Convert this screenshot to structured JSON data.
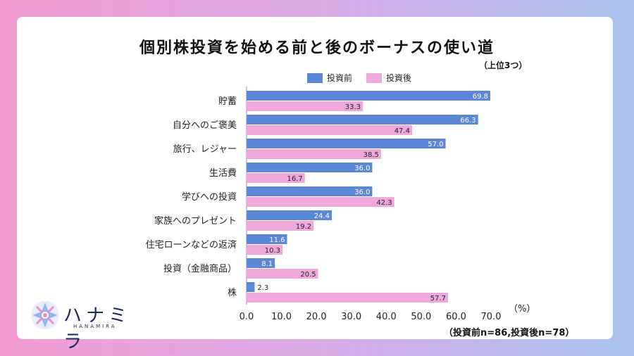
{
  "title": "個別株投資を始める前と後のボーナスの使い道",
  "subtitle": "（上位3つ）",
  "legend": {
    "before": "投資前",
    "after": "投資後"
  },
  "unit": "（%）",
  "note": "（投資前n=86,投資後n=78）",
  "logo": {
    "name": "ハナミラ",
    "sub": "HANAMIRA"
  },
  "colors": {
    "before": "#5b87d6",
    "after": "#eea8dc",
    "axis": "#999999"
  },
  "chart_data": {
    "type": "bar",
    "orientation": "horizontal",
    "categories": [
      "貯蓄",
      "自分へのご褒美",
      "旅行、レジャー",
      "生活費",
      "学びへの投資",
      "家族へのプレゼント",
      "住宅ローンなどの返済",
      "投資（金融商品）",
      "株"
    ],
    "series": [
      {
        "name": "投資前",
        "values": [
          69.8,
          66.3,
          57.0,
          36.0,
          36.0,
          24.4,
          11.6,
          8.1,
          2.3
        ]
      },
      {
        "name": "投資後",
        "values": [
          33.3,
          47.4,
          38.5,
          16.7,
          42.3,
          19.2,
          10.3,
          20.5,
          57.7
        ]
      }
    ],
    "xlim": [
      0,
      70
    ],
    "xticks": [
      "0.0",
      "10.0",
      "20.0",
      "30.0",
      "40.0",
      "50.0",
      "60.0",
      "70.0"
    ],
    "xlabel": "",
    "ylabel": "",
    "grid": false,
    "legend": "top-center"
  }
}
